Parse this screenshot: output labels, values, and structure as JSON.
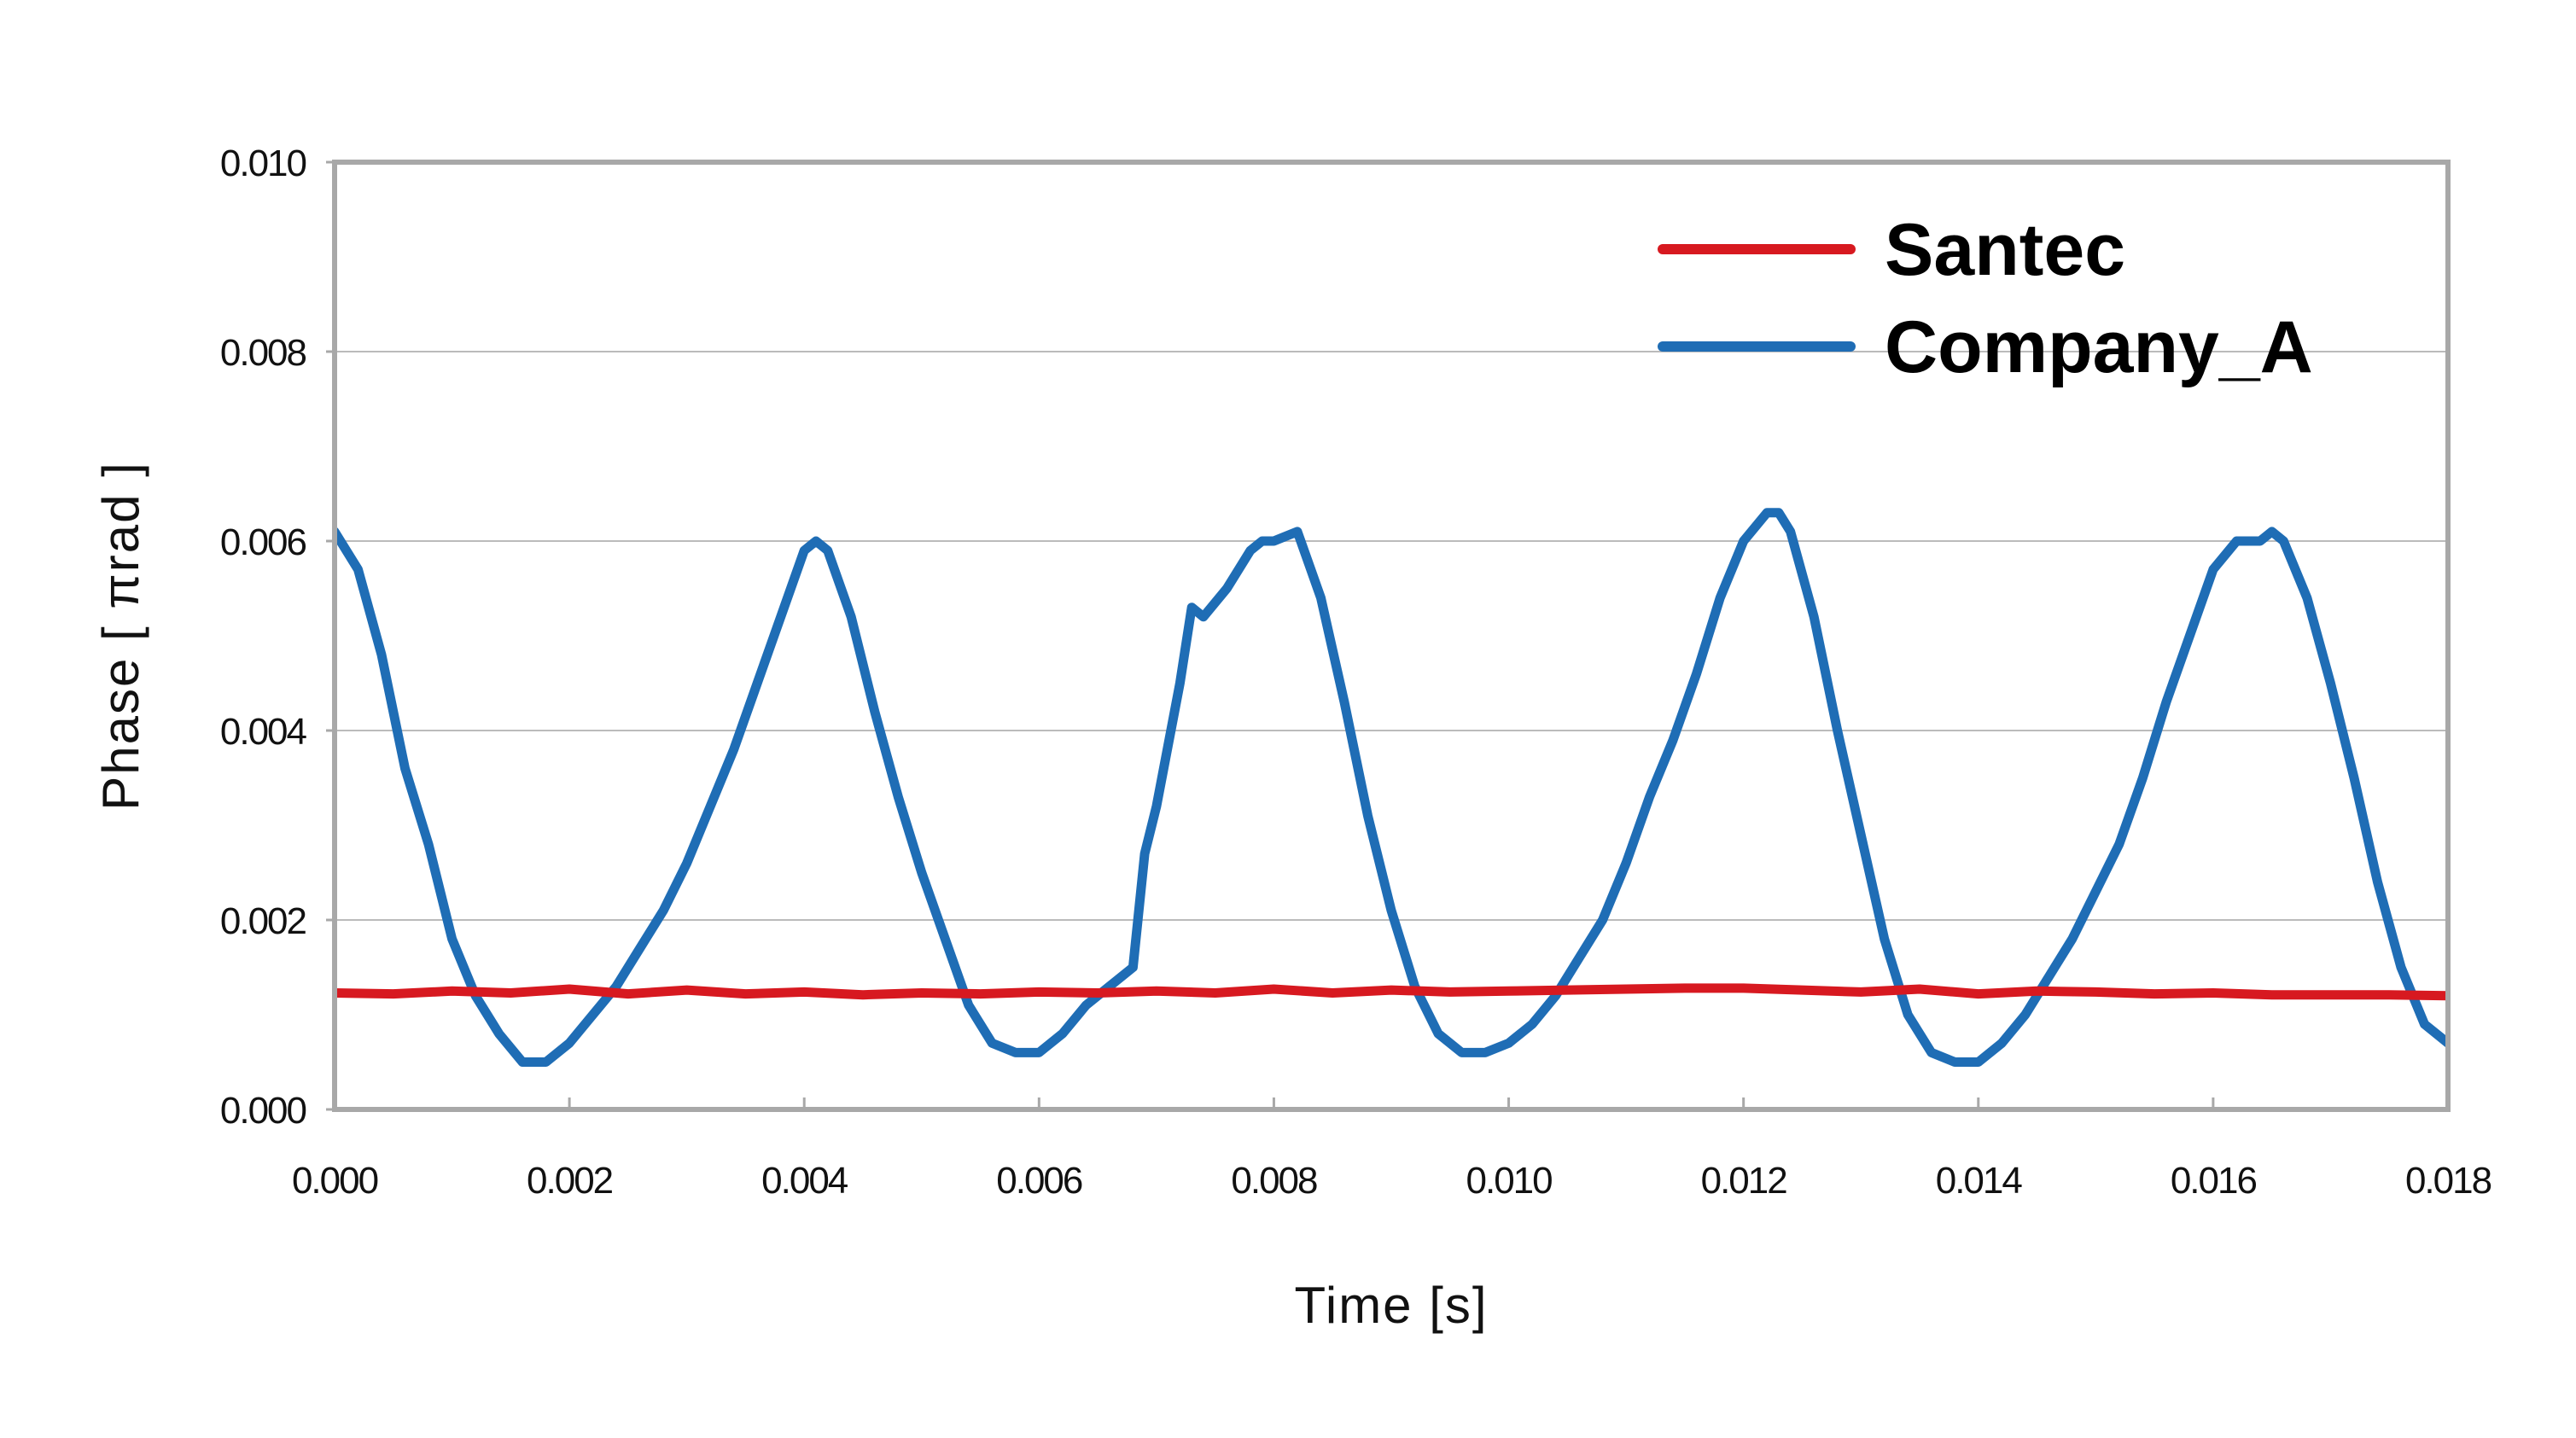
{
  "chart_data": {
    "type": "line",
    "title": "",
    "xlabel": "Time [s]",
    "ylabel": "Phase [ πrad ]",
    "xlim": [
      0.0,
      0.018
    ],
    "ylim": [
      0.0,
      0.01
    ],
    "x_ticks": [
      "0.000",
      "0.002",
      "0.004",
      "0.006",
      "0.008",
      "0.010",
      "0.012",
      "0.014",
      "0.016",
      "0.018"
    ],
    "y_ticks": [
      "0.000",
      "0.002",
      "0.004",
      "0.006",
      "0.008",
      "0.010"
    ],
    "grid": "horizontal",
    "legend_position": "top-right",
    "colors": {
      "Santec": "#d71920",
      "Company_A": "#1f6db5",
      "frame": "#a8a8a8",
      "grid": "#bbbbbb"
    },
    "series": [
      {
        "name": "Santec",
        "x": [
          0.0,
          0.0005,
          0.001,
          0.0015,
          0.002,
          0.0025,
          0.003,
          0.0035,
          0.004,
          0.0045,
          0.005,
          0.0055,
          0.006,
          0.0065,
          0.007,
          0.0075,
          0.008,
          0.0085,
          0.009,
          0.0095,
          0.01,
          0.0105,
          0.011,
          0.0115,
          0.012,
          0.0125,
          0.013,
          0.0135,
          0.014,
          0.0145,
          0.015,
          0.0155,
          0.016,
          0.0165,
          0.017,
          0.0175,
          0.018
        ],
        "y": [
          0.00123,
          0.00122,
          0.00125,
          0.00123,
          0.00127,
          0.00122,
          0.00126,
          0.00122,
          0.00124,
          0.00121,
          0.00123,
          0.00122,
          0.00124,
          0.00123,
          0.00125,
          0.00123,
          0.00127,
          0.00123,
          0.00126,
          0.00124,
          0.00125,
          0.00126,
          0.00127,
          0.00128,
          0.00128,
          0.00126,
          0.00124,
          0.00127,
          0.00122,
          0.00125,
          0.00124,
          0.00122,
          0.00123,
          0.00121,
          0.00121,
          0.00121,
          0.0012
        ]
      },
      {
        "name": "Company_A",
        "x": [
          0.0,
          0.0002,
          0.0004,
          0.0006,
          0.0008,
          0.001,
          0.0012,
          0.0014,
          0.0016,
          0.0018,
          0.002,
          0.0022,
          0.0024,
          0.0026,
          0.0028,
          0.003,
          0.0032,
          0.0034,
          0.0036,
          0.0038,
          0.004,
          0.0041,
          0.0042,
          0.0044,
          0.0046,
          0.0048,
          0.005,
          0.0052,
          0.0054,
          0.0056,
          0.0058,
          0.006,
          0.0062,
          0.0064,
          0.0066,
          0.0068,
          0.0069,
          0.007,
          0.0072,
          0.0073,
          0.0074,
          0.0076,
          0.0078,
          0.0079,
          0.008,
          0.0082,
          0.0084,
          0.0086,
          0.0088,
          0.009,
          0.0092,
          0.0094,
          0.0096,
          0.0098,
          0.01,
          0.0102,
          0.0104,
          0.0106,
          0.0108,
          0.011,
          0.0112,
          0.0114,
          0.0116,
          0.0118,
          0.012,
          0.0122,
          0.0123,
          0.0124,
          0.0126,
          0.0128,
          0.013,
          0.0132,
          0.0134,
          0.0136,
          0.0138,
          0.014,
          0.0142,
          0.0144,
          0.0146,
          0.0148,
          0.015,
          0.0152,
          0.0154,
          0.0156,
          0.0158,
          0.016,
          0.0162,
          0.0164,
          0.0165,
          0.0166,
          0.0168,
          0.017,
          0.0172,
          0.0174,
          0.0176,
          0.0178,
          0.018
        ],
        "y": [
          0.0061,
          0.0057,
          0.0048,
          0.0036,
          0.0028,
          0.0018,
          0.0012,
          0.0008,
          0.0005,
          0.0005,
          0.0007,
          0.001,
          0.0013,
          0.0017,
          0.0021,
          0.0026,
          0.0032,
          0.0038,
          0.0045,
          0.0052,
          0.0059,
          0.006,
          0.0059,
          0.0052,
          0.0042,
          0.0033,
          0.0025,
          0.0018,
          0.0011,
          0.0007,
          0.0006,
          0.0006,
          0.0008,
          0.0011,
          0.0013,
          0.0015,
          0.0027,
          0.0032,
          0.0045,
          0.0053,
          0.0052,
          0.0055,
          0.0059,
          0.006,
          0.006,
          0.0061,
          0.0054,
          0.0043,
          0.0031,
          0.0021,
          0.0013,
          0.0008,
          0.0006,
          0.0006,
          0.0007,
          0.0009,
          0.0012,
          0.0016,
          0.002,
          0.0026,
          0.0033,
          0.0039,
          0.0046,
          0.0054,
          0.006,
          0.0063,
          0.0063,
          0.0061,
          0.0052,
          0.004,
          0.0029,
          0.0018,
          0.001,
          0.0006,
          0.0005,
          0.0005,
          0.0007,
          0.001,
          0.0014,
          0.0018,
          0.0023,
          0.0028,
          0.0035,
          0.0043,
          0.005,
          0.0057,
          0.006,
          0.006,
          0.0061,
          0.006,
          0.0054,
          0.0045,
          0.0035,
          0.0024,
          0.0015,
          0.0009,
          0.0007
        ]
      }
    ]
  }
}
